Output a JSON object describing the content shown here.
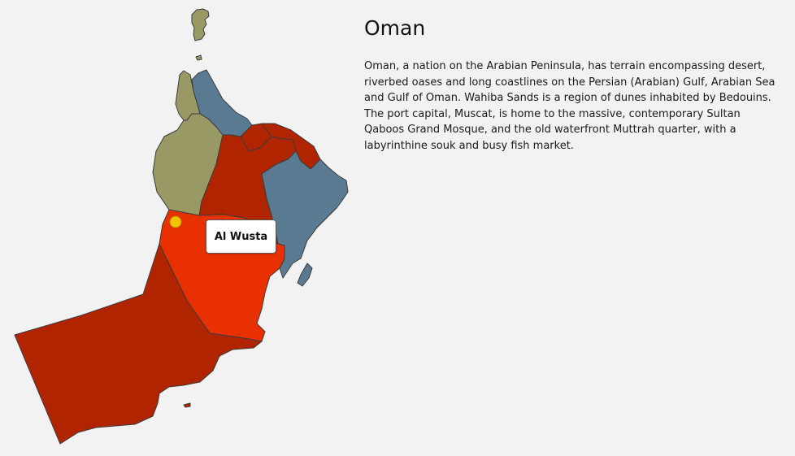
{
  "country": {
    "title": "Oman",
    "description": "Oman, a nation on the Arabian Peninsula, has terrain encompassing desert, riverbed oases and long coastlines on the Persian (Arabian) Gulf, Arabian Sea and Gulf of Oman. Wahiba Sands is a region of dunes inhabited by Bedouins. The port capital, Muscat, is home to the massive, contemporary Sultan Qaboos Grand Mosque, and the old waterfront Muttrah quarter, with a labyrinthine souk and busy fish market."
  },
  "map": {
    "hovered_region": "Al Wusta",
    "marker_color": "#f5c400",
    "colors": {
      "olive": "#999966",
      "slate": "#5a7a92",
      "dark_red": "#b02400",
      "highlight": "#e83000"
    }
  }
}
